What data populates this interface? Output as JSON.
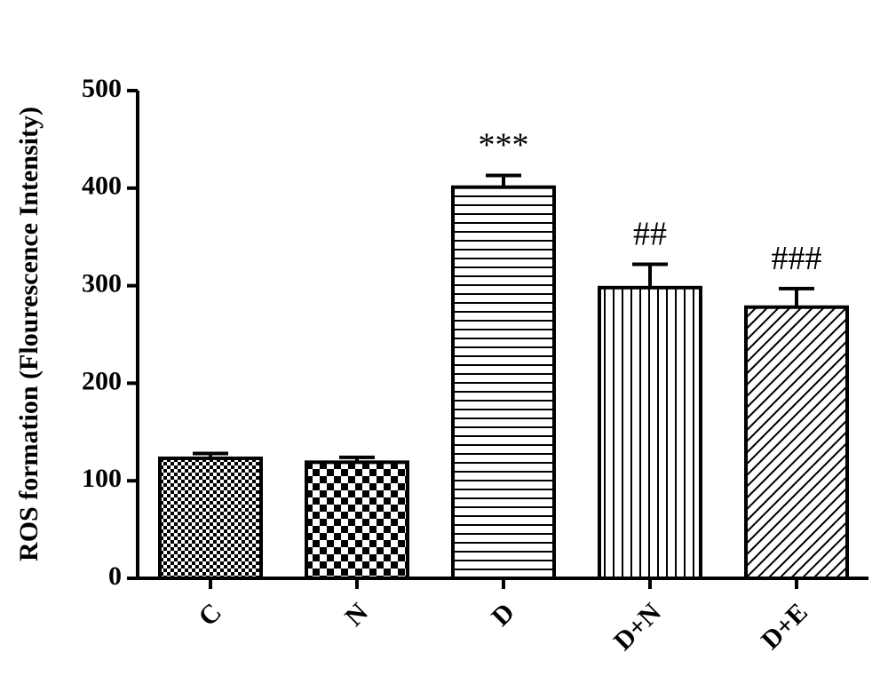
{
  "chart_data": {
    "type": "bar",
    "y_label": "ROS formation (Flourescence Intensity)",
    "categories": [
      "C",
      "N",
      "D",
      "D+N",
      "D+E"
    ],
    "values": [
      123,
      119,
      401,
      298,
      278
    ],
    "errors": [
      5,
      5,
      12,
      24,
      19
    ],
    "annotations": [
      null,
      null,
      "***",
      "##",
      "###"
    ],
    "ylim": [
      0,
      500
    ],
    "yticks": [
      0,
      100,
      200,
      300,
      400,
      500
    ]
  }
}
